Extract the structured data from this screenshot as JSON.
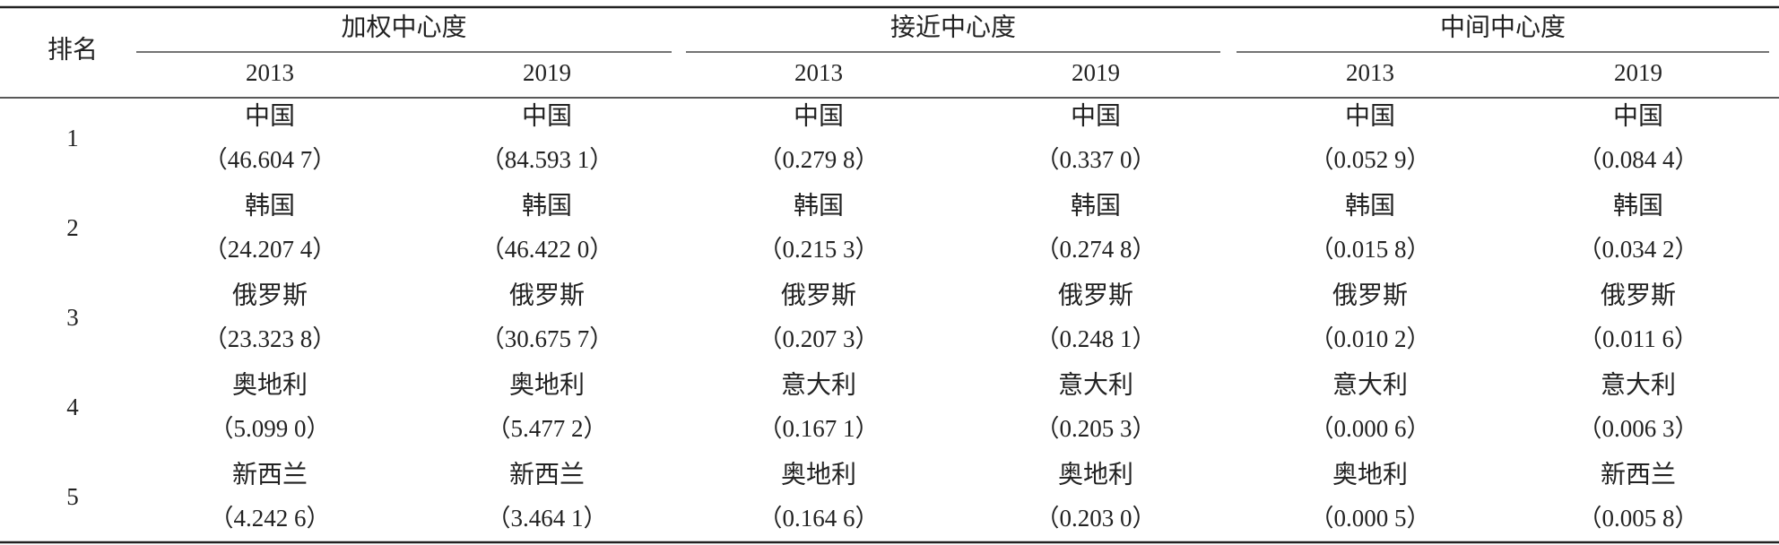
{
  "table": {
    "corner": "排名",
    "groups": [
      {
        "title": "加权中心度",
        "years": [
          "2013",
          "2019"
        ]
      },
      {
        "title": "接近中心度",
        "years": [
          "2013",
          "2019"
        ]
      },
      {
        "title": "中间中心度",
        "years": [
          "2013",
          "2019"
        ]
      }
    ],
    "rows": [
      {
        "rank": "1",
        "cells": [
          {
            "name": "中国",
            "value": "（46.604 7）"
          },
          {
            "name": "中国",
            "value": "（84.593 1）"
          },
          {
            "name": "中国",
            "value": "（0.279 8）"
          },
          {
            "name": "中国",
            "value": "（0.337 0）"
          },
          {
            "name": "中国",
            "value": "（0.052 9）"
          },
          {
            "name": "中国",
            "value": "（0.084 4）"
          }
        ]
      },
      {
        "rank": "2",
        "cells": [
          {
            "name": "韩国",
            "value": "（24.207 4）"
          },
          {
            "name": "韩国",
            "value": "（46.422 0）"
          },
          {
            "name": "韩国",
            "value": "（0.215 3）"
          },
          {
            "name": "韩国",
            "value": "（0.274 8）"
          },
          {
            "name": "韩国",
            "value": "（0.015 8）"
          },
          {
            "name": "韩国",
            "value": "（0.034 2）"
          }
        ]
      },
      {
        "rank": "3",
        "cells": [
          {
            "name": "俄罗斯",
            "value": "（23.323 8）"
          },
          {
            "name": "俄罗斯",
            "value": "（30.675 7）"
          },
          {
            "name": "俄罗斯",
            "value": "（0.207 3）"
          },
          {
            "name": "俄罗斯",
            "value": "（0.248 1）"
          },
          {
            "name": "俄罗斯",
            "value": "（0.010 2）"
          },
          {
            "name": "俄罗斯",
            "value": "（0.011 6）"
          }
        ]
      },
      {
        "rank": "4",
        "cells": [
          {
            "name": "奥地利",
            "value": "（5.099 0）"
          },
          {
            "name": "奥地利",
            "value": "（5.477 2）"
          },
          {
            "name": "意大利",
            "value": "（0.167 1）"
          },
          {
            "name": "意大利",
            "value": "（0.205 3）"
          },
          {
            "name": "意大利",
            "value": "（0.000 6）"
          },
          {
            "name": "意大利",
            "value": "（0.006 3）"
          }
        ]
      },
      {
        "rank": "5",
        "cells": [
          {
            "name": "新西兰",
            "value": "（4.242 6）"
          },
          {
            "name": "新西兰",
            "value": "（3.464 1）"
          },
          {
            "name": "奥地利",
            "value": "（0.164 6）"
          },
          {
            "name": "奥地利",
            "value": "（0.203 0）"
          },
          {
            "name": "奥地利",
            "value": "（0.000 5）"
          },
          {
            "name": "新西兰",
            "value": "（0.005 8）"
          }
        ]
      }
    ]
  }
}
